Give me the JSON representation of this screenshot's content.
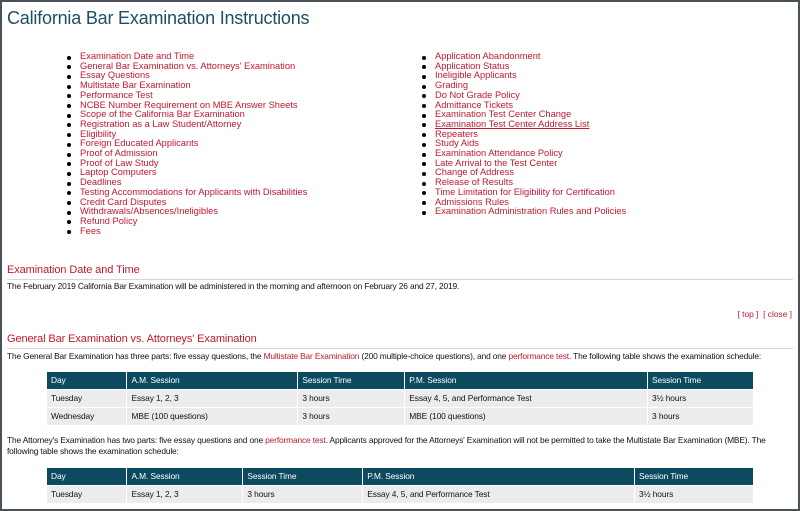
{
  "title": "California Bar Examination Instructions",
  "toc_left": [
    "Examination Date and Time",
    "General Bar Examination vs. Attorneys' Examination",
    "Essay Questions",
    "Multistate Bar Examination",
    "Performance Test",
    "NCBE Number Requirement on MBE Answer Sheets",
    "Scope of the California Bar Examination",
    "Registration as a Law Student/Attorney",
    "Eligibility",
    "Foreign Educated Applicants",
    "Proof of Admission",
    "Proof of Law Study",
    "Laptop Computers",
    "Deadlines",
    "Testing Accommodations for Applicants with Disabilities",
    "Credit Card Disputes",
    "Withdrawals/Absences/Ineligibles",
    "Refund Policy",
    "Fees"
  ],
  "toc_right": [
    "Application Abandonment",
    "Application Status",
    "Ineligible Applicants",
    "Grading",
    "Do Not Grade Policy",
    "Admittance Tickets",
    "Examination Test Center Change",
    "Examination Test Center Address List",
    "Repeaters",
    "Study Aids",
    "Examination Attendance Policy",
    "Late Arrival to the Test Center",
    "Change of Address",
    "Release of Results",
    "Time Limitation for Eligibility for Certification",
    "Admissions Rules",
    "Examination Administration Rules and Policies"
  ],
  "section1": {
    "heading": "Examination Date and Time",
    "text": "The February 2019 California Bar Examination will be administered in the morning and afternoon on February 26 and 27, 2019.",
    "top": "[ top ]",
    "close": "[ close ]"
  },
  "section2": {
    "heading": "General Bar Examination vs. Attorneys' Examination",
    "p1": {
      "a": "The General Bar Examination has three parts: five essay questions, the ",
      "link1": "Multistate Bar Examination",
      "b": " (200 multiple-choice questions), and one ",
      "link2": "performance test",
      "c": ". The following table shows the examination schedule:"
    },
    "p2": {
      "a": "The Attorney's Examination has two parts: five essay questions and one ",
      "link": "performance test",
      "b": ". Applicants approved for the Attorneys' Examination will not be permitted to take the Multistate Bar Examination (MBE). The following table shows the examination schedule:"
    },
    "table1": {
      "headers": [
        "Day",
        "A.M. Session",
        "Session Time",
        "P.M. Session",
        "Session Time"
      ],
      "rows": [
        [
          "Tuesday",
          "Essay 1, 2, 3",
          "3 hours",
          "Essay 4, 5, and Performance Test",
          "3½ hours"
        ],
        [
          "Wednesday",
          "MBE (100 questions)",
          "3 hours",
          "MBE (100 questions)",
          "3 hours"
        ]
      ]
    },
    "table2": {
      "headers": [
        "Day",
        "A.M. Session",
        "Session Time",
        "P.M. Session",
        "Session Time"
      ],
      "rows": [
        [
          "Tuesday",
          "Essay 1, 2, 3",
          "3 hours",
          "Essay 4, 5, and Performance Test",
          "3½ hours"
        ]
      ]
    }
  },
  "colors": {
    "heading": "#1d4f66",
    "link": "#c0182f",
    "table_header": "#0c4a60"
  }
}
